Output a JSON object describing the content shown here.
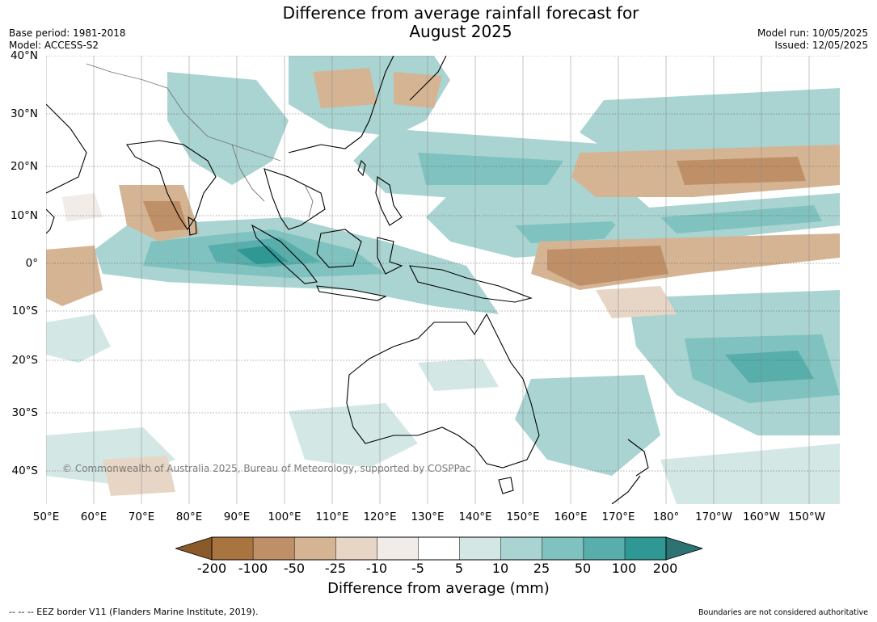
{
  "header": {
    "title_line1": "Difference from average rainfall forecast for",
    "title_line2": "August 2025",
    "base_period": "Base period: 1981-2018",
    "model": "Model: ACCESS-S2",
    "model_run": "Model run: 10/05/2025",
    "issued": "Issued: 12/05/2025"
  },
  "map": {
    "lat_labels": [
      "40°N",
      "30°N",
      "20°N",
      "10°N",
      "0°",
      "10°S",
      "20°S",
      "30°S",
      "40°S"
    ],
    "lon_labels": [
      "50°E",
      "60°E",
      "70°E",
      "80°E",
      "90°E",
      "100°E",
      "110°E",
      "120°E",
      "130°E",
      "140°E",
      "150°E",
      "160°E",
      "170°E",
      "180°",
      "170°W",
      "160°W",
      "150°W"
    ],
    "copyright": "© Commonwealth of Australia 2025, Bureau of Meteorology, supported by COSPPac"
  },
  "legend": {
    "ticks": [
      "-200",
      "-100",
      "-50",
      "-25",
      "-10",
      "-5",
      "5",
      "10",
      "25",
      "50",
      "100",
      "200"
    ],
    "title": "Difference from average (mm)",
    "colors": [
      "#8b5a2b",
      "#a87440",
      "#bf9068",
      "#d5b494",
      "#e7d6c6",
      "#f2ece8",
      "#ffffff",
      "#d3e8e5",
      "#a9d4d1",
      "#80c2bf",
      "#57aeab",
      "#2f9895",
      "#2d7373"
    ]
  },
  "footer": {
    "eez": "--  --  -- EEZ border V11 (Flanders Marine Institute, 2019).",
    "boundaries": "Boundaries are not considered authoritative"
  }
}
